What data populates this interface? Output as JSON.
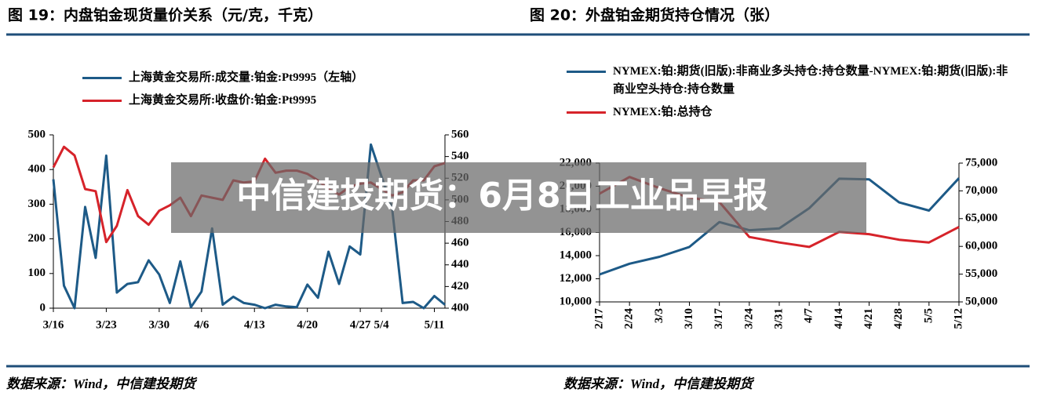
{
  "figures": [
    {
      "caption": "图 19：内盘铂金现货量价关系（元/克，千克）",
      "source": "数据来源：Wind，中信建投期货"
    },
    {
      "caption": "图 20：外盘铂金期货持仓情况（张）",
      "source": "数据来源：Wind，中信建投期货"
    }
  ],
  "banner": {
    "title": "中信建投期货：6月8日工业品早报"
  },
  "chart_data": [
    {
      "type": "line",
      "categories": [
        "3/16",
        null,
        null,
        null,
        null,
        "3/23",
        null,
        null,
        null,
        null,
        "3/30",
        null,
        null,
        null,
        "4/6",
        null,
        null,
        null,
        null,
        "4/13",
        null,
        null,
        null,
        null,
        "4/20",
        null,
        null,
        null,
        null,
        "4/27",
        null,
        "5/4",
        null,
        null,
        null,
        null,
        "5/11",
        null
      ],
      "series": [
        {
          "name": "上海黄金交易所:成交量:铂金:Pt9995（左轴）",
          "color": "#1d5a87",
          "values": [
            372,
            65,
            0,
            292,
            145,
            440,
            45,
            70,
            75,
            138,
            97,
            15,
            135,
            3,
            48,
            230,
            10,
            33,
            15,
            10,
            0,
            10,
            5,
            3,
            68,
            30,
            163,
            70,
            178,
            155,
            472,
            380,
            290,
            15,
            18,
            0,
            35,
            10
          ]
        },
        {
          "name": "上海黄金交易所:收盘价:铂金:Pt9995",
          "color": "#d6232a",
          "axis": "y2",
          "values": [
            530,
            549,
            541,
            510,
            508,
            461,
            476,
            509,
            485,
            477,
            490,
            495,
            502,
            485,
            504,
            502,
            500,
            518,
            516,
            517,
            538,
            525,
            527,
            527,
            524,
            518,
            510,
            505,
            512,
            515,
            516,
            510,
            504,
            507,
            518,
            518,
            531,
            534
          ]
        }
      ],
      "ylim": [
        0,
        500
      ],
      "yticks": [
        0,
        100,
        200,
        300,
        400,
        500
      ],
      "y2lim": [
        400,
        560
      ],
      "y2ticks": [
        400,
        420,
        440,
        460,
        480,
        500,
        520,
        540,
        560
      ],
      "grid": false
    },
    {
      "type": "line",
      "categories": [
        "2/17",
        "2/24",
        "3/3",
        "3/10",
        "3/17",
        "3/24",
        "3/31",
        "4/7",
        "4/14",
        "4/21",
        "4/28",
        "5/5",
        "5/12"
      ],
      "series": [
        {
          "name": "NYMEX:铂:期货(旧版):非商业多头持仓:持仓数量-NYMEX:铂:期货(旧版):非商业空头持仓:持仓数量",
          "color": "#1d5a87",
          "values": [
            12370,
            13300,
            13900,
            14750,
            16900,
            16200,
            16350,
            18100,
            20650,
            20600,
            18600,
            17900,
            20700
          ]
        },
        {
          "name": "NYMEX:铂:总持仓",
          "color": "#d6232a",
          "axis": "y2",
          "values": [
            69500,
            72500,
            70500,
            68800,
            68000,
            61700,
            60700,
            59900,
            62600,
            62200,
            61200,
            60700,
            63500
          ]
        }
      ],
      "ylim": [
        10000,
        22000
      ],
      "yticks": [
        {
          "value": 10000,
          "label": "10,000"
        },
        {
          "value": 12000,
          "label": "12,000"
        },
        {
          "value": 14000,
          "label": "14,000"
        },
        {
          "value": 16000,
          "label": "16,000"
        },
        {
          "value": 18000,
          "label": "18,000"
        },
        {
          "value": 20000,
          "label": "20,000"
        },
        {
          "value": 22000,
          "label": "22,000"
        }
      ],
      "y2lim": [
        50000,
        75000
      ],
      "y2ticks": [
        {
          "value": 50000,
          "label": "50,000"
        },
        {
          "value": 55000,
          "label": "55,000"
        },
        {
          "value": 60000,
          "label": "60,000"
        },
        {
          "value": 65000,
          "label": "65,000"
        },
        {
          "value": 70000,
          "label": "70,000"
        },
        {
          "value": 75000,
          "label": "75,000"
        }
      ],
      "grid": false
    }
  ]
}
